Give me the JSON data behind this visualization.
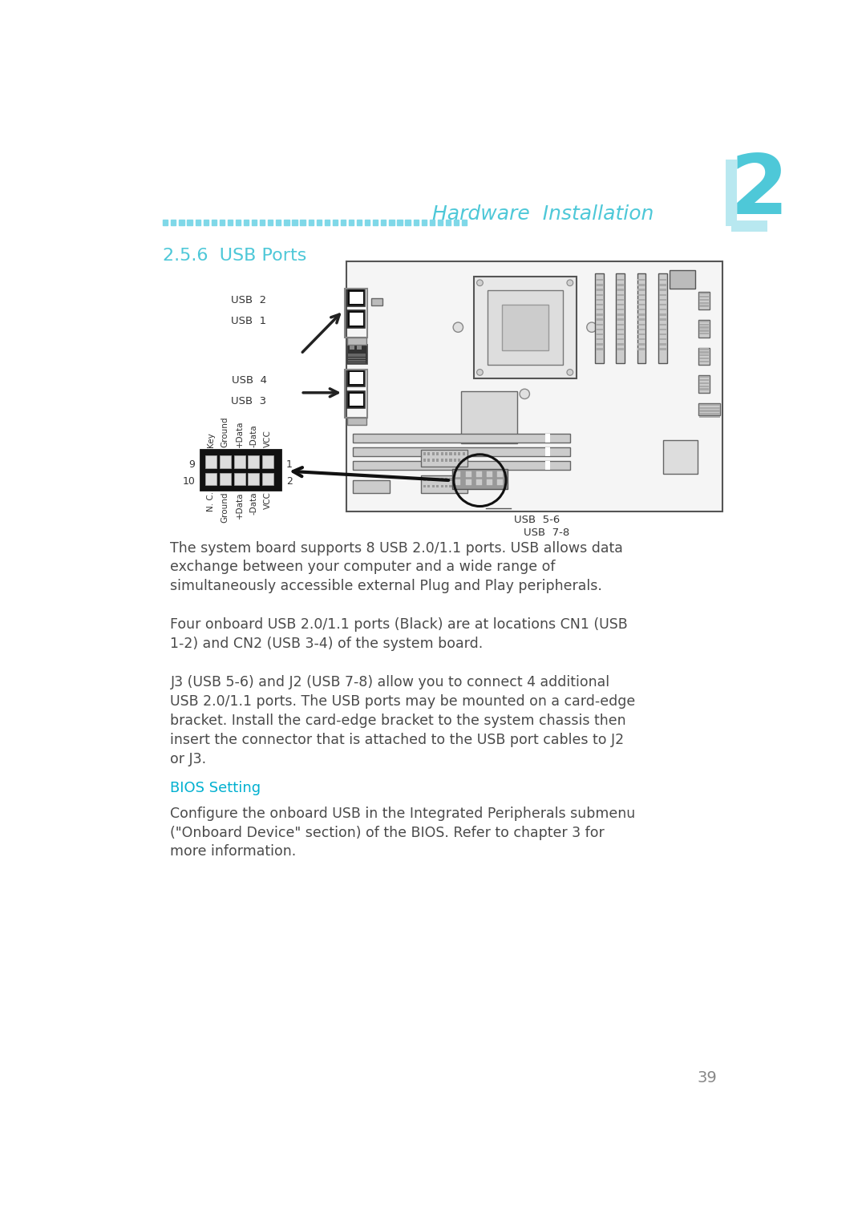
{
  "page_bg": "#ffffff",
  "chapter_num": "2",
  "chapter_color": "#4ec8d8",
  "header_text": "Hardware  Installation",
  "header_color": "#4ec8d8",
  "section_title": "2.5.6  USB Ports",
  "section_color": "#4ec8d8",
  "body_color": "#4a4a4a",
  "bios_color": "#00b0d0",
  "para1": "The system board supports 8 USB 2.0/1.1 ports. USB allows data\nexchange between your computer and a wide range of\nsimultaneously accessible external Plug and Play peripherals.",
  "para2": "Four onboard USB 2.0/1.1 ports (Black) are at locations CN1 (USB\n1-2) and CN2 (USB 3-4) of the system board.",
  "para3": "J3 (USB 5-6) and J2 (USB 7-8) allow you to connect 4 additional\nUSB 2.0/1.1 ports. The USB ports may be mounted on a card-edge\nbracket. Install the card-edge bracket to the system chassis then\ninsert the connector that is attached to the USB port cables to J2\nor J3.",
  "bios_heading": "BIOS Setting",
  "para4": "Configure the onboard USB in the Integrated Peripherals submenu\n(\"Onboard Device\" section) of the BIOS. Refer to chapter 3 for\nmore information.",
  "page_num": "39",
  "dot_color": "#7fd8e8",
  "edge_color": "#aaaaaa",
  "board_fill": "#f5f5f5",
  "dark_fill": "#222222",
  "mid_fill": "#999999"
}
